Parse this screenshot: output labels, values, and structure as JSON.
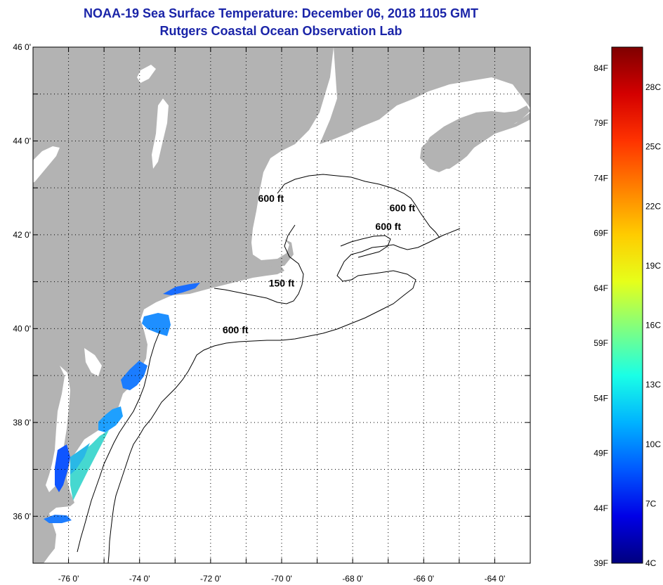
{
  "header": {
    "title": "NOAA-19 Sea Surface Temperature:  December 06, 2018 1105 GMT",
    "subtitle": "Rutgers Coastal Ocean Observation Lab"
  },
  "map": {
    "lat_range": [
      35,
      46
    ],
    "lon_range": [
      -77,
      -63
    ],
    "lat_ticks": [
      {
        "value": 46,
        "label": "46 0'"
      },
      {
        "value": 44,
        "label": "44 0'"
      },
      {
        "value": 42,
        "label": "42 0'"
      },
      {
        "value": 40,
        "label": "40 0'"
      },
      {
        "value": 38,
        "label": "38 0'"
      },
      {
        "value": 36,
        "label": "36 0'"
      }
    ],
    "lon_ticks": [
      {
        "value": -76,
        "label": "-76 0'"
      },
      {
        "value": -74,
        "label": "-74 0'"
      },
      {
        "value": -72,
        "label": "-72 0'"
      },
      {
        "value": -70,
        "label": "-70 0'"
      },
      {
        "value": -68,
        "label": "-68 0'"
      },
      {
        "value": -66,
        "label": "-66 0'"
      },
      {
        "value": -64,
        "label": "-64 0'"
      }
    ],
    "contour_labels": [
      {
        "text": "600 ft",
        "lon": -70.3,
        "lat": 42.7
      },
      {
        "text": "600 ft",
        "lon": -66.6,
        "lat": 42.5
      },
      {
        "text": "600 ft",
        "lon": -67.0,
        "lat": 42.1
      },
      {
        "text": "150 ft",
        "lon": -70.0,
        "lat": 40.9
      },
      {
        "text": "600 ft",
        "lon": -71.3,
        "lat": 39.9
      }
    ],
    "colors": {
      "land": "#b3b3b3",
      "ocean": "#ffffff",
      "grid": "#000000"
    }
  },
  "colorbar": {
    "fahrenheit": [
      "84F",
      "79F",
      "74F",
      "69F",
      "64F",
      "59F",
      "54F",
      "49F",
      "44F",
      "39F"
    ],
    "celsius": [
      "28C",
      "25C",
      "22C",
      "19C",
      "16C",
      "13C",
      "10C",
      "7C",
      "4C"
    ],
    "stops": [
      "#7f0000",
      "#d40000",
      "#ff3300",
      "#ff8000",
      "#ffcc00",
      "#e6ff1a",
      "#80ff80",
      "#1affe6",
      "#00b3ff",
      "#0059ff",
      "#0000e6",
      "#00007f"
    ]
  }
}
